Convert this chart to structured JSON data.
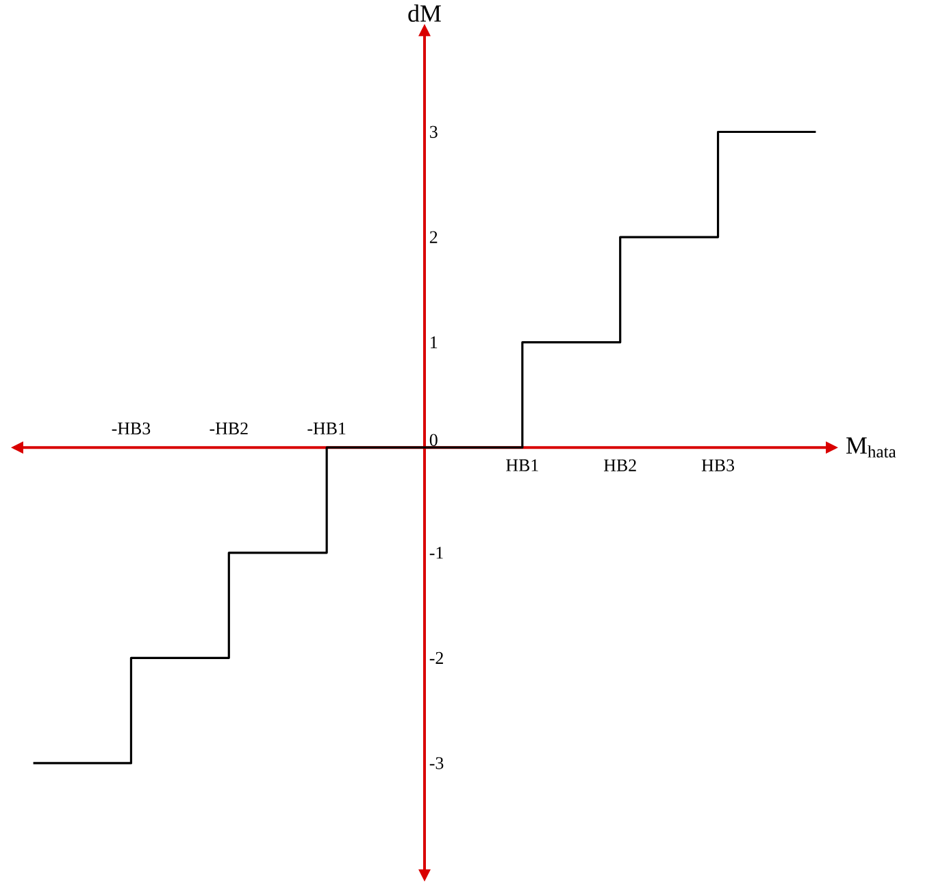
{
  "chart_data": {
    "type": "step",
    "xlabel": "M$_{hata}$",
    "ylabel": "dM",
    "categories": [
      null,
      "-HB3",
      "-HB2",
      "-HB1",
      null,
      "HB1",
      "HB2",
      "HB3",
      null
    ],
    "series": [
      {
        "color": "#000000",
        "values": [
          -3,
          -2,
          -1,
          0,
          0,
          1,
          2,
          3,
          3
        ]
      }
    ],
    "ylim": [
      -4.1,
      4
    ],
    "yticks": [
      -3,
      -2,
      -1,
      0,
      1,
      2,
      3
    ],
    "marker": "none",
    "line_style": "solid"
  }
}
